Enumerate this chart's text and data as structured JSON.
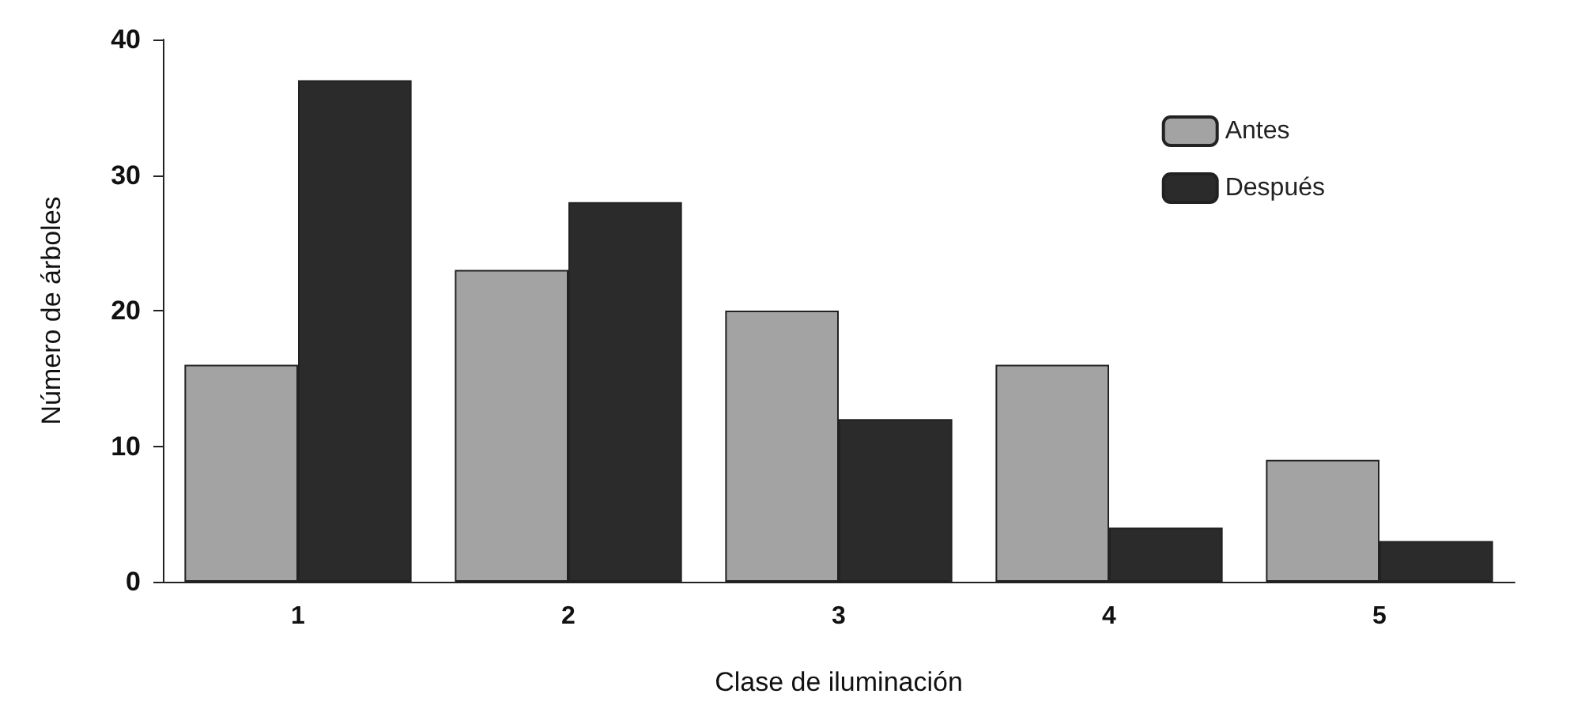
{
  "chart_data": {
    "type": "bar",
    "xlabel": "Clase de iluminación",
    "ylabel": "Número de árboles",
    "categories": [
      "1",
      "2",
      "3",
      "4",
      "5"
    ],
    "series": [
      {
        "name": "Antes",
        "color": "#a3a3a3",
        "values": [
          16,
          23,
          20,
          16,
          9
        ]
      },
      {
        "name": "Después",
        "color": "#2b2b2b",
        "values": [
          37,
          28,
          12,
          4,
          3
        ]
      }
    ],
    "ylim": [
      0,
      40
    ],
    "yticks": [
      0,
      10,
      20,
      30,
      40
    ],
    "grid": false,
    "legend": "top right"
  }
}
